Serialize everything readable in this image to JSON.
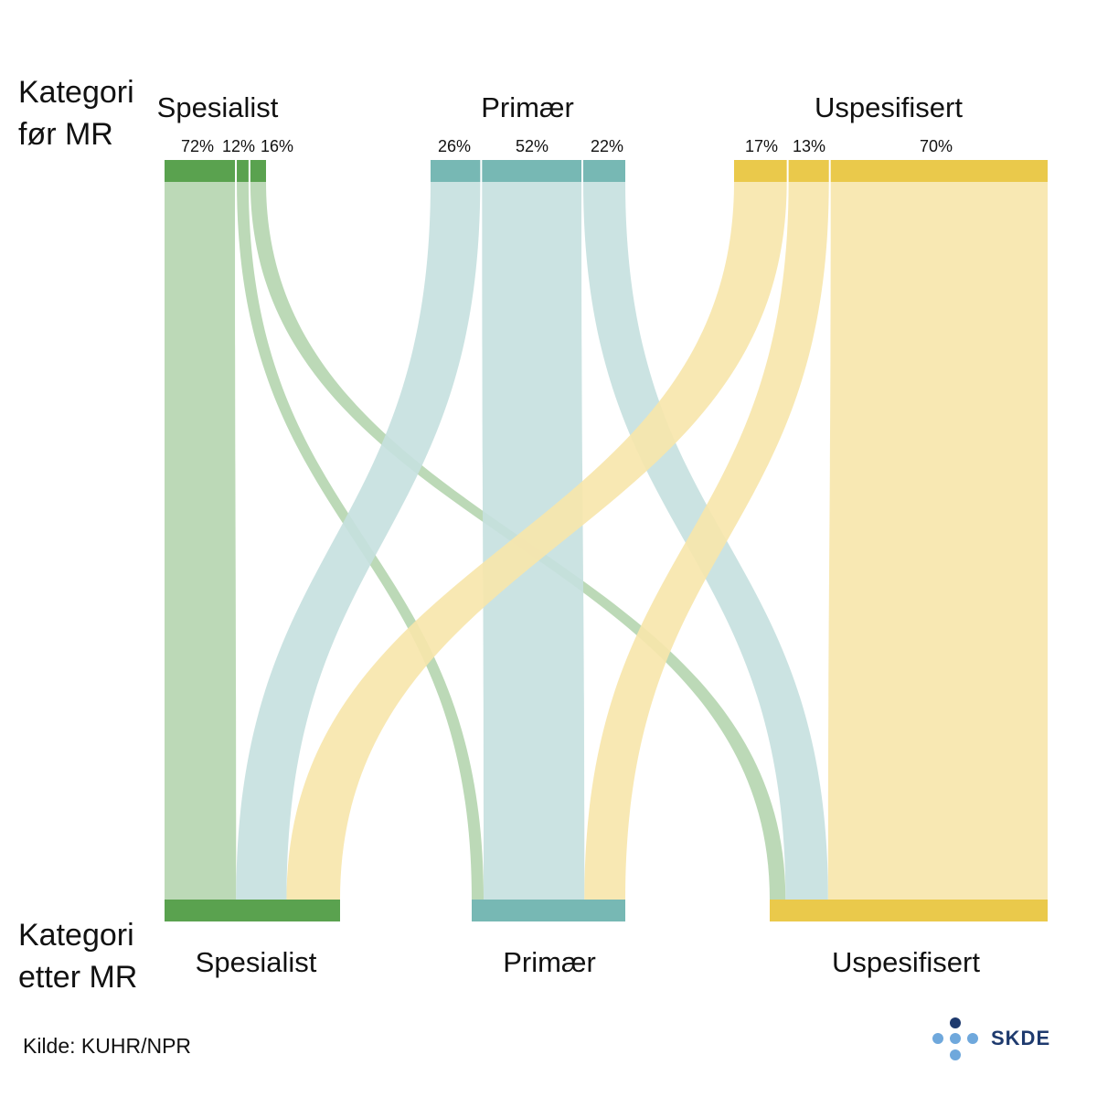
{
  "axis_titles": {
    "top_line1": "Kategori",
    "top_line2": "før MR",
    "bottom_line1": "Kategori",
    "bottom_line2": "etter MR"
  },
  "source": "Kilde: KUHR/NPR",
  "logo_text": "SKDE",
  "colors": {
    "Spesialist": {
      "node": "#5aa24f",
      "link": "#b5d5af"
    },
    "Primær": {
      "node": "#77b8b4",
      "link": "#c5e0df"
    },
    "Uspesifisert": {
      "node": "#eac94b",
      "link": "#f7e6ab"
    },
    "logo_dark": "#1e3a6e",
    "logo_light": "#6fa8dc"
  },
  "chart_data": {
    "type": "sankey",
    "title": "",
    "categories_before": [
      "Spesialist",
      "Primær",
      "Uspesifisert"
    ],
    "categories_after": [
      "Spesialist",
      "Primær",
      "Uspesifisert"
    ],
    "flows": [
      {
        "from": "Spesialist",
        "to": "Spesialist",
        "percent": 72,
        "label": "72%"
      },
      {
        "from": "Spesialist",
        "to": "Primær",
        "percent": 12,
        "label": "12%"
      },
      {
        "from": "Spesialist",
        "to": "Uspesifisert",
        "percent": 16,
        "label": "16%"
      },
      {
        "from": "Primær",
        "to": "Spesialist",
        "percent": 26,
        "label": "26%"
      },
      {
        "from": "Primær",
        "to": "Primær",
        "percent": 52,
        "label": "52%"
      },
      {
        "from": "Primær",
        "to": "Uspesifisert",
        "percent": 22,
        "label": "22%"
      },
      {
        "from": "Uspesifisert",
        "to": "Spesialist",
        "percent": 17,
        "label": "17%"
      },
      {
        "from": "Uspesifisert",
        "to": "Primær",
        "percent": 13,
        "label": "13%"
      },
      {
        "from": "Uspesifisert",
        "to": "Uspesifisert",
        "percent": 70,
        "label": "70%"
      }
    ]
  }
}
